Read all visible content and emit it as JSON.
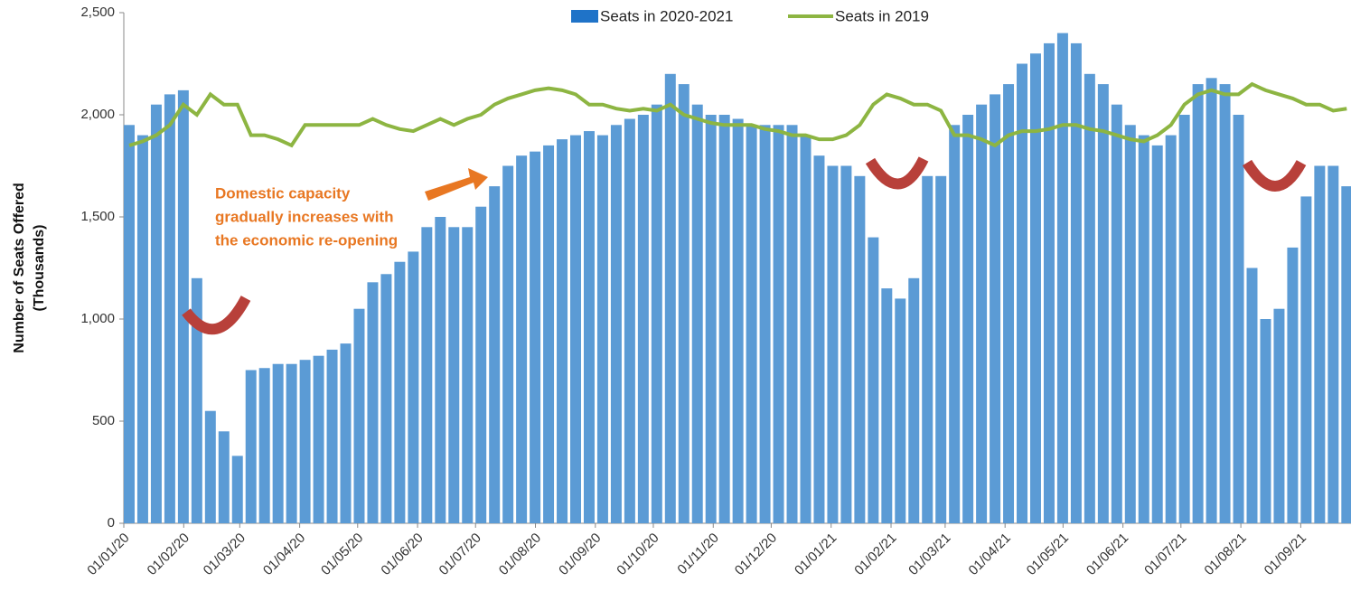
{
  "chart_data": {
    "type": "bar_line",
    "y_label": [
      "Number of Seats Offered",
      "(Thousands)"
    ],
    "annotation": [
      "Domestic capacity",
      "gradually increases with",
      "the economic re-opening"
    ],
    "xlim": [
      0,
      635
    ],
    "xticks": [
      {
        "value": 0,
        "label": "01/01/20"
      },
      {
        "value": 31,
        "label": "01/02/20"
      },
      {
        "value": 60,
        "label": "01/03/20"
      },
      {
        "value": 91,
        "label": "01/04/20"
      },
      {
        "value": 121,
        "label": "01/05/20"
      },
      {
        "value": 152,
        "label": "01/06/20"
      },
      {
        "value": 182,
        "label": "01/07/20"
      },
      {
        "value": 213,
        "label": "01/08/20"
      },
      {
        "value": 244,
        "label": "01/09/20"
      },
      {
        "value": 274,
        "label": "01/10/20"
      },
      {
        "value": 305,
        "label": "01/11/20"
      },
      {
        "value": 335,
        "label": "01/12/20"
      },
      {
        "value": 366,
        "label": "01/01/21"
      },
      {
        "value": 397,
        "label": "01/02/21"
      },
      {
        "value": 425,
        "label": "01/03/21"
      },
      {
        "value": 456,
        "label": "01/04/21"
      },
      {
        "value": 486,
        "label": "01/05/21"
      },
      {
        "value": 517,
        "label": "01/06/21"
      },
      {
        "value": 547,
        "label": "01/07/21"
      },
      {
        "value": 578,
        "label": "01/08/21"
      },
      {
        "value": 609,
        "label": "01/09/21"
      }
    ],
    "ylim": [
      0,
      2500
    ],
    "yticks": [
      0,
      500,
      {
        "value": 1000,
        "label": "1,000"
      },
      {
        "value": 1500,
        "label": "1,500"
      },
      {
        "value": 2000,
        "label": "2,000"
      },
      {
        "value": 2500,
        "label": "2,500"
      }
    ],
    "x": [
      0,
      7,
      14,
      21,
      28,
      35,
      42,
      49,
      56,
      63,
      70,
      77,
      84,
      91,
      98,
      105,
      112,
      119,
      126,
      133,
      140,
      147,
      154,
      161,
      168,
      175,
      182,
      189,
      196,
      203,
      210,
      217,
      224,
      231,
      238,
      245,
      252,
      259,
      266,
      273,
      280,
      287,
      294,
      301,
      308,
      315,
      322,
      329,
      336,
      343,
      350,
      357,
      364,
      371,
      378,
      385,
      392,
      399,
      406,
      413,
      420,
      427,
      434,
      441,
      448,
      455,
      462,
      469,
      476,
      483,
      490,
      497,
      504,
      511,
      518,
      525,
      532,
      539,
      546,
      553,
      560,
      567,
      574,
      581,
      588,
      595,
      602,
      609,
      616,
      623,
      630
    ],
    "series": [
      {
        "name": "Seats in 2020-2021",
        "type": "bar",
        "color": "#5b9bd5",
        "legend_color": "#1f73c8",
        "values": [
          1950,
          1900,
          2050,
          2100,
          2120,
          1200,
          550,
          450,
          330,
          750,
          760,
          780,
          780,
          800,
          820,
          850,
          880,
          1050,
          1180,
          1220,
          1280,
          1330,
          1450,
          1500,
          1450,
          1450,
          1550,
          1650,
          1750,
          1800,
          1820,
          1850,
          1880,
          1900,
          1920,
          1900,
          1950,
          1980,
          2000,
          2050,
          2200,
          2150,
          2050,
          2000,
          2000,
          1980,
          1950,
          1950,
          1950,
          1950,
          1900,
          1800,
          1750,
          1750,
          1700,
          1400,
          1150,
          1100,
          1200,
          1700,
          1700,
          1950,
          2000,
          2050,
          2100,
          2150,
          2250,
          2300,
          2350,
          2400,
          2350,
          2200,
          2150,
          2050,
          1950,
          1900,
          1850,
          1900,
          2000,
          2150,
          2180,
          2150,
          2000,
          1250,
          1000,
          1050,
          1350,
          1600,
          1750,
          1750,
          1650
        ]
      },
      {
        "name": "Seats in 2019",
        "type": "line",
        "color": "#8db542",
        "values": [
          1850,
          1870,
          1900,
          1950,
          2050,
          2000,
          2100,
          2050,
          2050,
          1900,
          1900,
          1880,
          1850,
          1950,
          1950,
          1950,
          1950,
          1950,
          1980,
          1950,
          1930,
          1920,
          1950,
          1980,
          1950,
          1980,
          2000,
          2050,
          2080,
          2100,
          2120,
          2130,
          2120,
          2100,
          2050,
          2050,
          2030,
          2020,
          2030,
          2020,
          2050,
          2000,
          1980,
          1960,
          1950,
          1950,
          1950,
          1930,
          1920,
          1900,
          1900,
          1880,
          1880,
          1900,
          1950,
          2050,
          2100,
          2080,
          2050,
          2050,
          2020,
          1900,
          1900,
          1880,
          1850,
          1900,
          1920,
          1920,
          1930,
          1950,
          1950,
          1930,
          1920,
          1900,
          1880,
          1870,
          1900,
          1950,
          2050,
          2100,
          2120,
          2100,
          2100,
          2150,
          2120,
          2100,
          2080,
          2050,
          2050,
          2020,
          2030
        ]
      }
    ]
  }
}
